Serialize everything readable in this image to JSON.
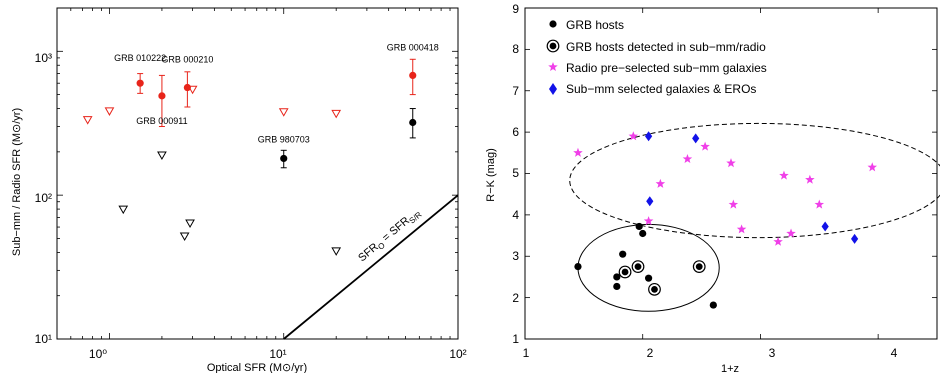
{
  "chart_data": [
    {
      "type": "scatter",
      "xlabel": "Optical SFR  (M⊙/yr)",
      "ylabel": "Sub−mm / Radio SFR  (M⊙/yr)",
      "xscale": "log",
      "yscale": "log",
      "xlim": [
        0.5,
        100
      ],
      "ylim": [
        10,
        2000
      ],
      "xticks": [
        1,
        10,
        100
      ],
      "xtick_labels": [
        "10⁰",
        "10¹",
        "10²"
      ],
      "yticks": [
        10,
        100,
        1000
      ],
      "ytick_labels": [
        "10¹",
        "10²",
        "10³"
      ],
      "grid": false,
      "series": [
        {
          "kind": "detections",
          "color": "#e8241a",
          "points": [
            {
              "x": 1.5,
              "y": 600,
              "ylo": 510,
              "yhi": 700
            },
            {
              "x": 2.0,
              "y": 490,
              "ylo": 300,
              "yhi": 680
            },
            {
              "x": 2.8,
              "y": 560,
              "ylo": 410,
              "yhi": 720
            },
            {
              "x": 55,
              "y": 680,
              "ylo": 500,
              "yhi": 880
            }
          ]
        },
        {
          "kind": "detections",
          "color": "#000000",
          "points": [
            {
              "x": 10,
              "y": 180,
              "ylo": 155,
              "yhi": 205
            },
            {
              "x": 55,
              "y": 320,
              "ylo": 250,
              "yhi": 400
            }
          ]
        },
        {
          "kind": "upper-limits",
          "color": "#e8241a",
          "points": [
            {
              "x": 0.75,
              "y": 335
            },
            {
              "x": 1.0,
              "y": 385
            },
            {
              "x": 3.0,
              "y": 545
            },
            {
              "x": 10,
              "y": 380
            },
            {
              "x": 20,
              "y": 370
            }
          ]
        },
        {
          "kind": "upper-limits",
          "color": "#000000",
          "points": [
            {
              "x": 1.2,
              "y": 80
            },
            {
              "x": 2.0,
              "y": 190
            },
            {
              "x": 2.7,
              "y": 52
            },
            {
              "x": 2.9,
              "y": 64
            },
            {
              "x": 20,
              "y": 41
            }
          ]
        }
      ],
      "line": {
        "x": [
          10,
          100
        ],
        "y": [
          10,
          100
        ],
        "color": "#000000"
      },
      "line_label": {
        "main": "SFR",
        "sub1": "O",
        "eq": " = SFR",
        "sub2": "S/R"
      },
      "annotations": [
        {
          "text": "GRB 010222",
          "x": 1.5,
          "y": 600
        },
        {
          "text": "GRB 000210",
          "x": 2.8,
          "y": 560
        },
        {
          "text": "GRB 000911",
          "x": 2.0,
          "y": 490
        },
        {
          "text": "GRB 980703",
          "x": 10,
          "y": 180
        },
        {
          "text": "GRB 000418",
          "x": 55,
          "y": 680
        }
      ]
    },
    {
      "type": "scatter",
      "xlabel": "1+z",
      "ylabel": "R−K  (mag)",
      "xlim": [
        1,
        4.5
      ],
      "ylim": [
        1,
        9
      ],
      "xticks": [
        1,
        2,
        3,
        4
      ],
      "yticks": [
        1,
        2,
        3,
        4,
        5,
        6,
        7,
        8,
        9
      ],
      "grid": false,
      "legend_position": "top-left",
      "series": [
        {
          "name": "GRB hosts",
          "marker": "filled-circle",
          "color": "#000000",
          "x": [
            1.45,
            1.78,
            1.78,
            1.83,
            1.97,
            2.0,
            2.05,
            2.6
          ],
          "y": [
            2.75,
            2.5,
            2.27,
            3.05,
            3.72,
            3.55,
            2.47,
            1.82
          ]
        },
        {
          "name": "GRB hosts detected in sub−mm/radio",
          "marker": "ringed-circle",
          "color": "#000000",
          "x": [
            1.85,
            1.96,
            2.1,
            2.48
          ],
          "y": [
            2.62,
            2.75,
            2.2,
            2.75
          ]
        },
        {
          "name": "Radio pre−selected sub−mm galaxies",
          "marker": "star",
          "color": "#f040e8",
          "x": [
            1.45,
            1.92,
            2.05,
            2.15,
            2.38,
            2.53,
            2.75,
            2.77,
            2.84,
            3.15,
            3.2,
            3.26,
            3.42,
            3.5,
            3.95
          ],
          "y": [
            5.5,
            5.9,
            3.85,
            4.75,
            5.35,
            5.65,
            5.25,
            4.25,
            3.65,
            3.35,
            4.95,
            3.55,
            4.85,
            4.25,
            5.15
          ]
        },
        {
          "name": "Sub−mm selected galaxies & EROs",
          "marker": "diamond",
          "color": "#1212e8",
          "x": [
            2.05,
            2.06,
            2.45,
            3.55,
            3.8
          ],
          "y": [
            5.9,
            4.33,
            5.85,
            3.72,
            3.42
          ]
        }
      ],
      "regions": [
        {
          "style": "solid",
          "cx": 2.05,
          "cy": 2.72,
          "rx": 0.6,
          "ry": 1.05
        },
        {
          "style": "dashed",
          "cx": 2.98,
          "cy": 4.83,
          "rx": 1.6,
          "ry": 1.38
        }
      ]
    }
  ]
}
